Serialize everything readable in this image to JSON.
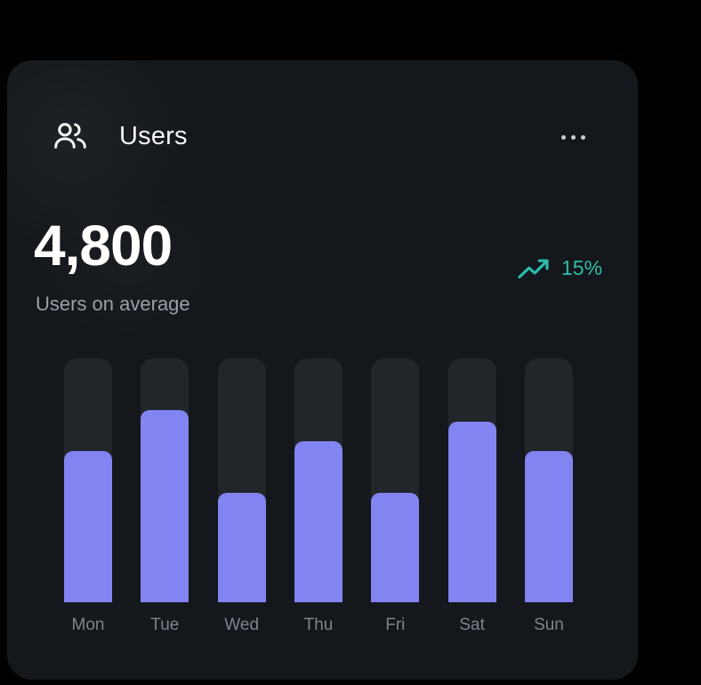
{
  "page": {
    "background": "#000000"
  },
  "card": {
    "background": "#14171b",
    "header": {
      "title": "Users",
      "icon": "users-icon",
      "menu_icon": "ellipsis-menu"
    },
    "stats": {
      "value": "4,800",
      "caption": "Users on average"
    },
    "trend": {
      "icon": "trending-up-icon",
      "value": "15%",
      "direction": "up",
      "color": "#2cbcaa"
    }
  },
  "chart_data": {
    "type": "bar",
    "categories": [
      "Mon",
      "Tue",
      "Wed",
      "Thu",
      "Fri",
      "Sat",
      "Sun"
    ],
    "values": [
      62,
      79,
      45,
      66,
      45,
      74,
      62
    ],
    "values_unit": "percent-of-track-height",
    "title": "",
    "xlabel": "",
    "ylabel": "",
    "ylim": [
      0,
      100
    ],
    "grid": false,
    "legend": false,
    "bar_color": "#8184f1",
    "track_color": "#22262b",
    "label_color": "#7e838c"
  },
  "colors": {
    "title_text": "#f3f5f6",
    "stat_text": "#ffffff",
    "caption_text": "#99a0a8",
    "trend_teal": "#2cbcaa",
    "ellipsis_dots": "#c9cdd3"
  }
}
